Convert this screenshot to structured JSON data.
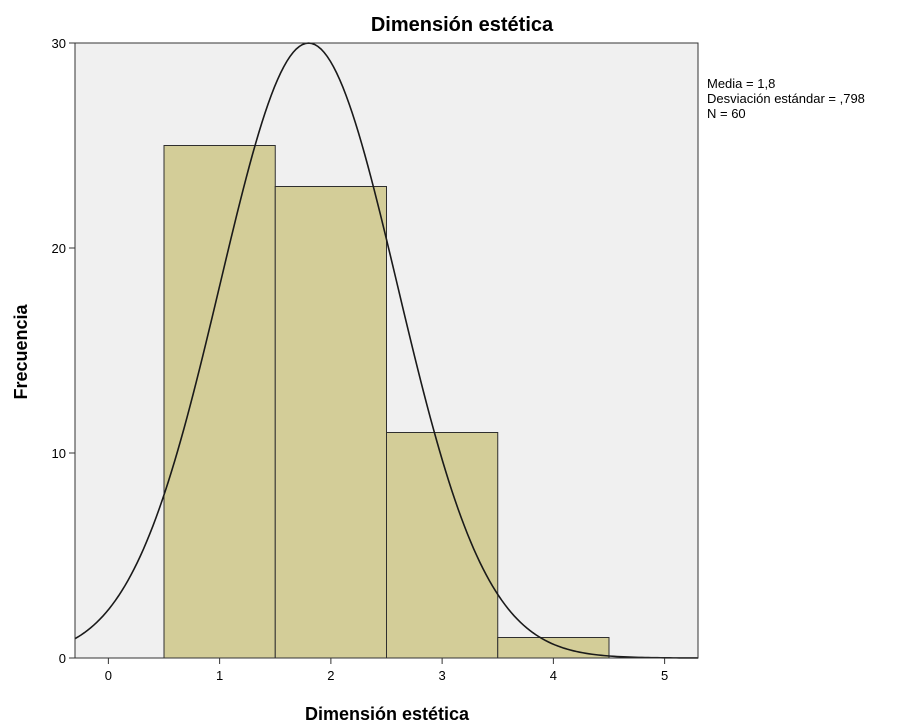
{
  "chart_data": {
    "type": "bar",
    "title": "Dimensión estética",
    "xlabel": "Dimensión estética",
    "ylabel": "Frecuencia",
    "bins": [
      {
        "from": 0.5,
        "to": 1.5,
        "value": 25
      },
      {
        "from": 1.5,
        "to": 2.5,
        "value": 23
      },
      {
        "from": 2.5,
        "to": 3.5,
        "value": 11
      },
      {
        "from": 3.5,
        "to": 4.5,
        "value": 1
      }
    ],
    "xlim": [
      -0.3,
      5.3
    ],
    "ylim": [
      0,
      30
    ],
    "x_ticks": [
      "0",
      "1",
      "2",
      "3",
      "4",
      "5"
    ],
    "y_ticks": [
      "0",
      "10",
      "20",
      "30"
    ],
    "normal_curve": {
      "mean": 1.8,
      "sd": 0.798,
      "n": 60,
      "bin_width": 1
    },
    "stats": [
      "Media = 1,8",
      "Desviación estándar = ,798",
      "N = 60"
    ],
    "grid": false,
    "colors": {
      "bar_fill": "#d3cd98",
      "bar_stroke": "#2f2f2f",
      "plot_bg": "#f0f0f0",
      "curve": "#1a1a1a"
    }
  }
}
